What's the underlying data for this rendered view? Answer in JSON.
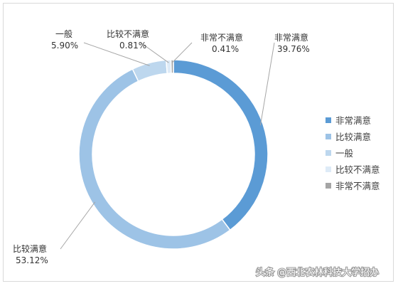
{
  "chart_data": {
    "type": "pie",
    "donut": true,
    "title": "",
    "slices": [
      {
        "label": "非常满意",
        "value": 39.76,
        "display": "39.76%",
        "color": "#5b9bd5"
      },
      {
        "label": "比较满意",
        "value": 53.12,
        "display": "53.12%",
        "color": "#9dc3e6"
      },
      {
        "label": "一般",
        "value": 5.9,
        "display": "5.90%",
        "color": "#bdd7ee"
      },
      {
        "label": "比较不满意",
        "value": 0.81,
        "display": "0.81%",
        "color": "#deebf7"
      },
      {
        "label": "非常不满意",
        "value": 0.41,
        "display": "0.41%",
        "color": "#a5a5a5"
      }
    ],
    "legend_position": "right"
  },
  "watermark": "头条 @西北农林科技大学招办"
}
